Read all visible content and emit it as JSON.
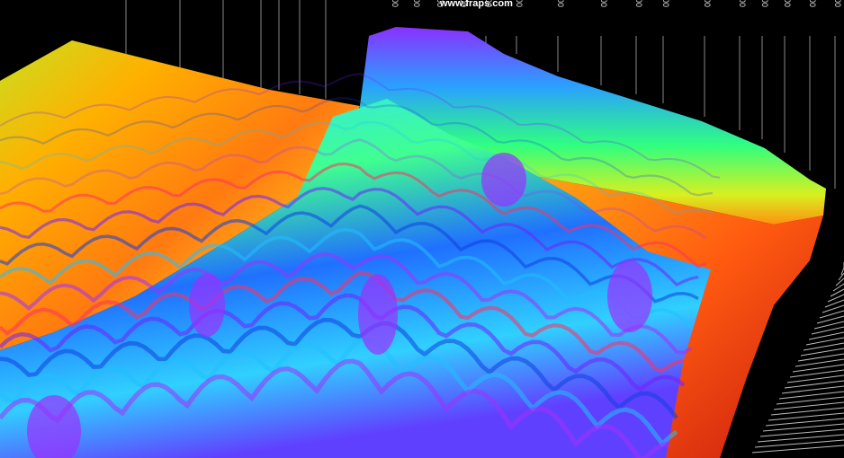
{
  "watermark": "www.fraps.com",
  "frequency_labels": [
    "5000",
    "4500",
    "4000",
    "3500",
    "3000",
    "2500",
    "2000",
    "1500",
    "1200",
    "1000",
    "700",
    "500",
    "400",
    "300",
    "200",
    "100"
  ]
}
